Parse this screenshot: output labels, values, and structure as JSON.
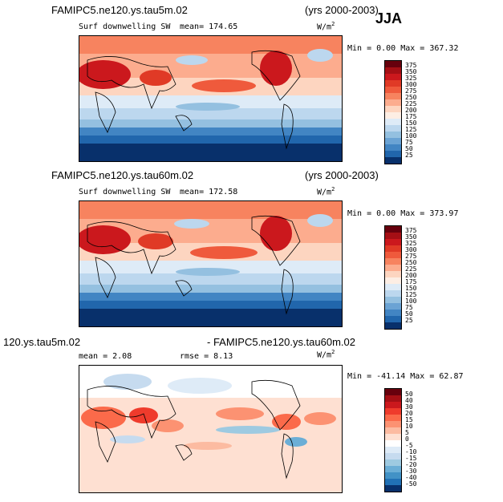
{
  "season": "JJA",
  "panels": [
    {
      "title": "FAMIPC5.ne120.ys.tau5m.02",
      "years": "(yrs 2000-2003)",
      "variable": "Surf downwelling SW",
      "stat": "mean= 174.65",
      "units": "W/m",
      "units_sup": "2",
      "minmax": "Min =    0.00 Max = 367.32",
      "colorbar_labels": [
        "375",
        "350",
        "325",
        "300",
        "275",
        "250",
        "225",
        "200",
        "175",
        "150",
        "125",
        "100",
        "75",
        "50",
        "25"
      ]
    },
    {
      "title": "FAMIPC5.ne120.ys.tau60m.02",
      "years": "(yrs 2000-2003)",
      "variable": "Surf downwelling SW",
      "stat": "mean= 172.58",
      "units": "W/m",
      "units_sup": "2",
      "minmax": "Min =    0.00 Max = 373.97",
      "colorbar_labels": [
        "375",
        "350",
        "325",
        "300",
        "275",
        "250",
        "225",
        "200",
        "175",
        "150",
        "125",
        "100",
        "75",
        "50",
        "25"
      ]
    },
    {
      "title_left": "120.ys.tau5m.02",
      "title_right": "- FAMIPC5.ne120.ys.tau60m.02",
      "stat_mean": "mean =    2.08",
      "stat_rmse": "rmse =    8.13",
      "units": "W/m",
      "units_sup": "2",
      "minmax": "Min = -41.14 Max =  62.87",
      "colorbar_labels": [
        "50",
        "40",
        "30",
        "20",
        "15",
        "10",
        "5",
        "0",
        "-5",
        "-10",
        "-15",
        "-20",
        "-30",
        "-40",
        "-50"
      ]
    }
  ],
  "colors": {
    "abs_scale": [
      "#67000d",
      "#a50f15",
      "#cb181d",
      "#e03a26",
      "#ef5a3c",
      "#f7835f",
      "#fcac8e",
      "#fdd5c0",
      "#fdeee4",
      "#deebf7",
      "#bcd7ee",
      "#94c0e0",
      "#6ba3d4",
      "#4285c3",
      "#2166ac",
      "#1048a0",
      "#08306b"
    ],
    "diff_scale": [
      "#67000d",
      "#a50f15",
      "#cb181d",
      "#ef3b2c",
      "#fb6a4a",
      "#fc9272",
      "#fcbba1",
      "#fee0d2",
      "#ffffff",
      "#deebf7",
      "#c6dbef",
      "#9ecae1",
      "#6baed6",
      "#4292c6",
      "#2171b5",
      "#08519c",
      "#08306b"
    ]
  }
}
